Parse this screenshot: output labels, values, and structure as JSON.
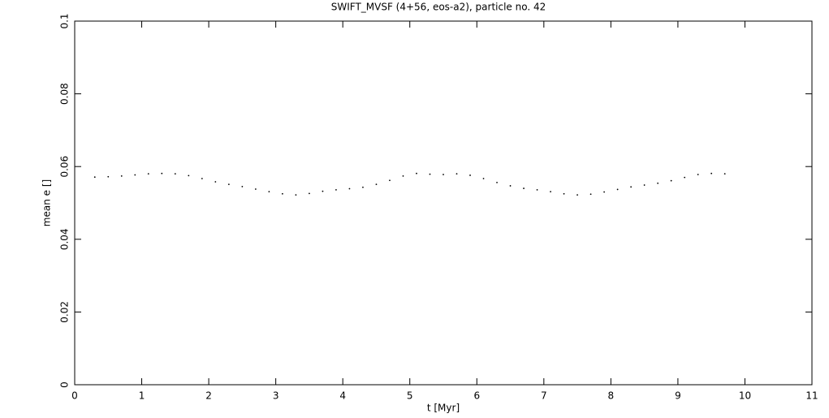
{
  "chart_data": {
    "type": "scatter",
    "title": "SWIFT_MVSF (4+56, eos-a2), particle no. 42",
    "x_label": "t [Myr]",
    "y_label": "mean e []",
    "color": "#000000",
    "x": [
      0.3,
      0.5,
      0.7,
      0.9,
      1.1,
      1.3,
      1.5,
      1.7,
      1.9,
      2.1,
      2.3,
      2.5,
      2.7,
      2.9,
      3.1,
      3.3,
      3.5,
      3.7,
      3.9,
      4.1,
      4.3,
      4.5,
      4.7,
      4.9,
      5.1,
      5.3,
      5.5,
      5.7,
      5.9,
      6.1,
      6.3,
      6.5,
      6.7,
      6.9,
      7.1,
      7.3,
      7.5,
      7.7,
      7.9,
      8.1,
      8.3,
      8.5,
      8.7,
      8.9,
      9.1,
      9.3,
      9.5,
      9.7
    ],
    "values": [
      0.0571,
      0.0572,
      0.0574,
      0.0577,
      0.058,
      0.0581,
      0.058,
      0.0575,
      0.0567,
      0.0558,
      0.0551,
      0.0545,
      0.0538,
      0.0531,
      0.0525,
      0.0522,
      0.0526,
      0.0532,
      0.0536,
      0.0539,
      0.0543,
      0.0551,
      0.0562,
      0.0574,
      0.0581,
      0.0579,
      0.0578,
      0.058,
      0.0576,
      0.0567,
      0.0556,
      0.0547,
      0.054,
      0.0536,
      0.0531,
      0.0525,
      0.0522,
      0.0524,
      0.053,
      0.0537,
      0.0544,
      0.0549,
      0.0554,
      0.0561,
      0.057,
      0.0578,
      0.0581,
      0.058
    ],
    "xlim": [
      0,
      11
    ],
    "xticks": [
      0,
      1,
      2,
      3,
      4,
      5,
      6,
      7,
      8,
      9,
      10,
      11
    ],
    "ylim": [
      0,
      0.1
    ],
    "yticks": [
      0,
      0.02,
      0.04,
      0.06,
      0.08,
      0.1
    ]
  }
}
